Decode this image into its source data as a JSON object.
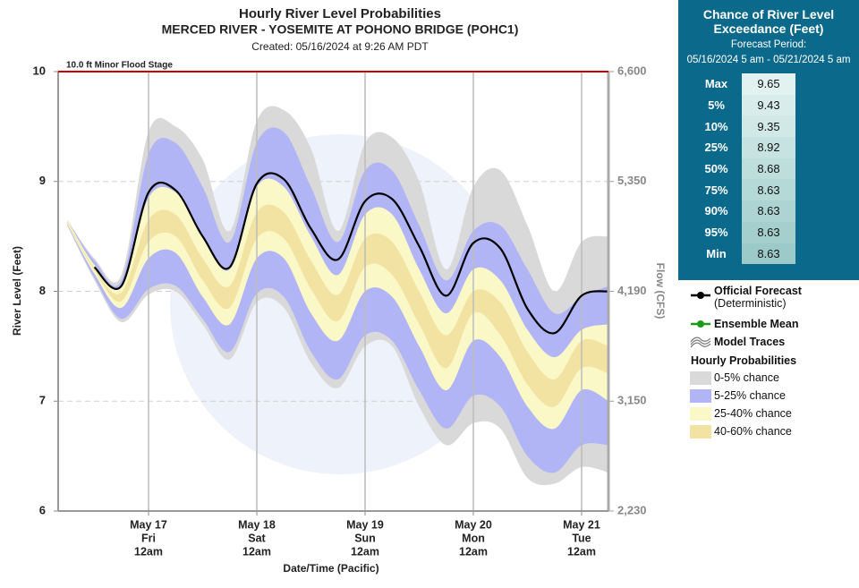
{
  "chart_data": {
    "type": "band",
    "title": "Hourly River Level Probabilities",
    "subtitle": "MERCED RIVER - YOSEMITE AT POHONO BRIDGE (POHC1)",
    "created": "Created: 05/16/2024 at 9:26 AM PDT",
    "ylabel": "River Level (Feet)",
    "y2label": "Flow (CFS)",
    "xlabel": "Date/Time (Pacific)",
    "categories": [
      null,
      null,
      null,
      [
        "May 17",
        "Fri",
        "12am"
      ],
      null,
      null,
      null,
      [
        "May 18",
        "Sat",
        "12am"
      ],
      null,
      null,
      null,
      [
        "May 19",
        "Sun",
        "12am"
      ],
      null,
      null,
      null,
      [
        "May 20",
        "Mon",
        "12am"
      ],
      null,
      null,
      null,
      [
        "May 21",
        "Tue",
        "12am"
      ],
      null
    ],
    "ylim": [
      6,
      10
    ],
    "yticks": [
      6,
      7,
      8,
      9,
      10
    ],
    "y2ticks": [
      {
        "stage": 6,
        "label": "2,230"
      },
      {
        "stage": 7,
        "label": "3,150"
      },
      {
        "stage": 8,
        "label": "4,190"
      },
      {
        "stage": 9,
        "label": "5,350"
      },
      {
        "stage": 10,
        "label": "6,600"
      }
    ],
    "grid": true,
    "flood_stage": {
      "value": 10,
      "label": "10.0 ft Minor Flood Stage",
      "color": "#cc0000"
    },
    "forecast": {
      "name": "Official Forecast",
      "detail": "(Deterministic)",
      "color": "#000000",
      "values": [
        null,
        8.22,
        8.05,
        8.9,
        8.92,
        8.5,
        8.22,
        8.98,
        9.02,
        8.57,
        8.29,
        8.82,
        8.84,
        8.41,
        7.96,
        8.44,
        8.39,
        7.84,
        7.62,
        7.96,
        8.0
      ]
    },
    "ensemble_mean": {
      "name": "Ensemble Mean",
      "color": "#1a9c1a"
    },
    "model_traces": {
      "name": "Model Traces"
    },
    "bands_title": "Hourly Probabilities",
    "bands": [
      {
        "name": "0-5% chance",
        "color": "#d9d9d9",
        "upper": [
          8.65,
          8.3,
          8.15,
          9.45,
          9.5,
          9.2,
          8.55,
          9.55,
          9.65,
          9.3,
          8.55,
          9.35,
          9.4,
          9.0,
          8.2,
          8.95,
          9.1,
          8.6,
          8.0,
          8.45,
          8.5
        ],
        "lower": [
          8.6,
          8.1,
          7.72,
          7.97,
          8.0,
          7.7,
          7.38,
          7.9,
          7.85,
          7.35,
          7.12,
          7.5,
          7.5,
          6.95,
          6.6,
          6.8,
          6.75,
          6.3,
          6.25,
          6.4,
          6.35
        ]
      },
      {
        "name": "5-25% chance",
        "color": "#b1b5f6",
        "upper": [
          8.65,
          8.28,
          8.1,
          9.25,
          9.35,
          8.95,
          8.45,
          9.35,
          9.45,
          8.95,
          8.45,
          9.1,
          9.1,
          8.6,
          8.1,
          8.55,
          8.6,
          8.2,
          7.8,
          7.95,
          8.05
        ],
        "lower": [
          8.6,
          8.12,
          7.75,
          8.02,
          8.05,
          7.75,
          7.45,
          7.98,
          7.95,
          7.45,
          7.2,
          7.6,
          7.55,
          7.1,
          6.75,
          7.05,
          6.95,
          6.5,
          6.35,
          6.6,
          6.6
        ]
      },
      {
        "name": "25-40% chance",
        "color": "#fbf8c8",
        "upper": [
          8.65,
          8.24,
          8.05,
          8.85,
          8.9,
          8.5,
          8.2,
          8.95,
          8.95,
          8.5,
          8.15,
          8.7,
          8.7,
          8.2,
          7.8,
          8.2,
          8.1,
          7.65,
          7.4,
          7.65,
          7.7
        ],
        "lower": [
          8.61,
          8.16,
          7.85,
          8.3,
          8.35,
          7.95,
          7.7,
          8.3,
          8.3,
          7.8,
          7.55,
          8.0,
          7.95,
          7.5,
          7.1,
          7.55,
          7.4,
          6.95,
          6.75,
          7.1,
          7.0
        ]
      },
      {
        "name": "40-60% chance",
        "color": "#f3e3a2",
        "upper": [
          8.64,
          8.21,
          7.99,
          8.65,
          8.7,
          8.3,
          8.05,
          8.72,
          8.72,
          8.28,
          7.97,
          8.48,
          8.45,
          8.0,
          7.6,
          8.0,
          7.9,
          7.45,
          7.2,
          7.55,
          7.5
        ],
        "lower": [
          8.62,
          8.19,
          7.91,
          8.45,
          8.5,
          8.1,
          7.85,
          8.48,
          8.48,
          8.02,
          7.73,
          8.22,
          8.15,
          7.7,
          7.3,
          7.8,
          7.6,
          7.15,
          6.95,
          7.3,
          7.25
        ]
      }
    ]
  },
  "exceedance": {
    "title": "Chance of River Level Exceedance (Feet)",
    "period_label": "Forecast Period:",
    "period": "05/16/2024 5 am - 05/21/2024 5 am",
    "rows": [
      [
        "Max",
        9.65
      ],
      [
        "5%",
        9.43
      ],
      [
        "10%",
        9.35
      ],
      [
        "25%",
        8.92
      ],
      [
        "50%",
        8.68
      ],
      [
        "75%",
        8.63
      ],
      [
        "90%",
        8.63
      ],
      [
        "95%",
        8.63
      ],
      [
        "Min",
        8.63
      ]
    ]
  }
}
